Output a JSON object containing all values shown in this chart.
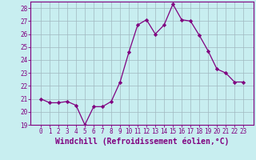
{
  "x": [
    0,
    1,
    2,
    3,
    4,
    5,
    6,
    7,
    8,
    9,
    10,
    11,
    12,
    13,
    14,
    15,
    16,
    17,
    18,
    19,
    20,
    21,
    22,
    23
  ],
  "y": [
    21.0,
    20.7,
    20.7,
    20.8,
    20.5,
    19.0,
    20.4,
    20.4,
    20.8,
    22.3,
    24.6,
    26.7,
    27.1,
    26.0,
    26.7,
    28.3,
    27.1,
    27.0,
    25.9,
    24.7,
    23.3,
    23.0,
    22.3,
    22.3
  ],
  "line_color": "#800080",
  "marker": "D",
  "marker_size": 2.2,
  "bg_color": "#c8eef0",
  "grid_color": "#a0b8c0",
  "ylim": [
    19,
    28.5
  ],
  "yticks": [
    19,
    20,
    21,
    22,
    23,
    24,
    25,
    26,
    27,
    28
  ],
  "xticks": [
    0,
    1,
    2,
    3,
    4,
    5,
    6,
    7,
    8,
    9,
    10,
    11,
    12,
    13,
    14,
    15,
    16,
    17,
    18,
    19,
    20,
    21,
    22,
    23
  ],
  "xlabel": "Windchill (Refroidissement éolien,°C)",
  "xlabel_color": "#800080",
  "tick_color": "#800080",
  "axis_color": "#800080",
  "tick_fontsize": 5.5,
  "xlabel_fontsize": 7.0
}
